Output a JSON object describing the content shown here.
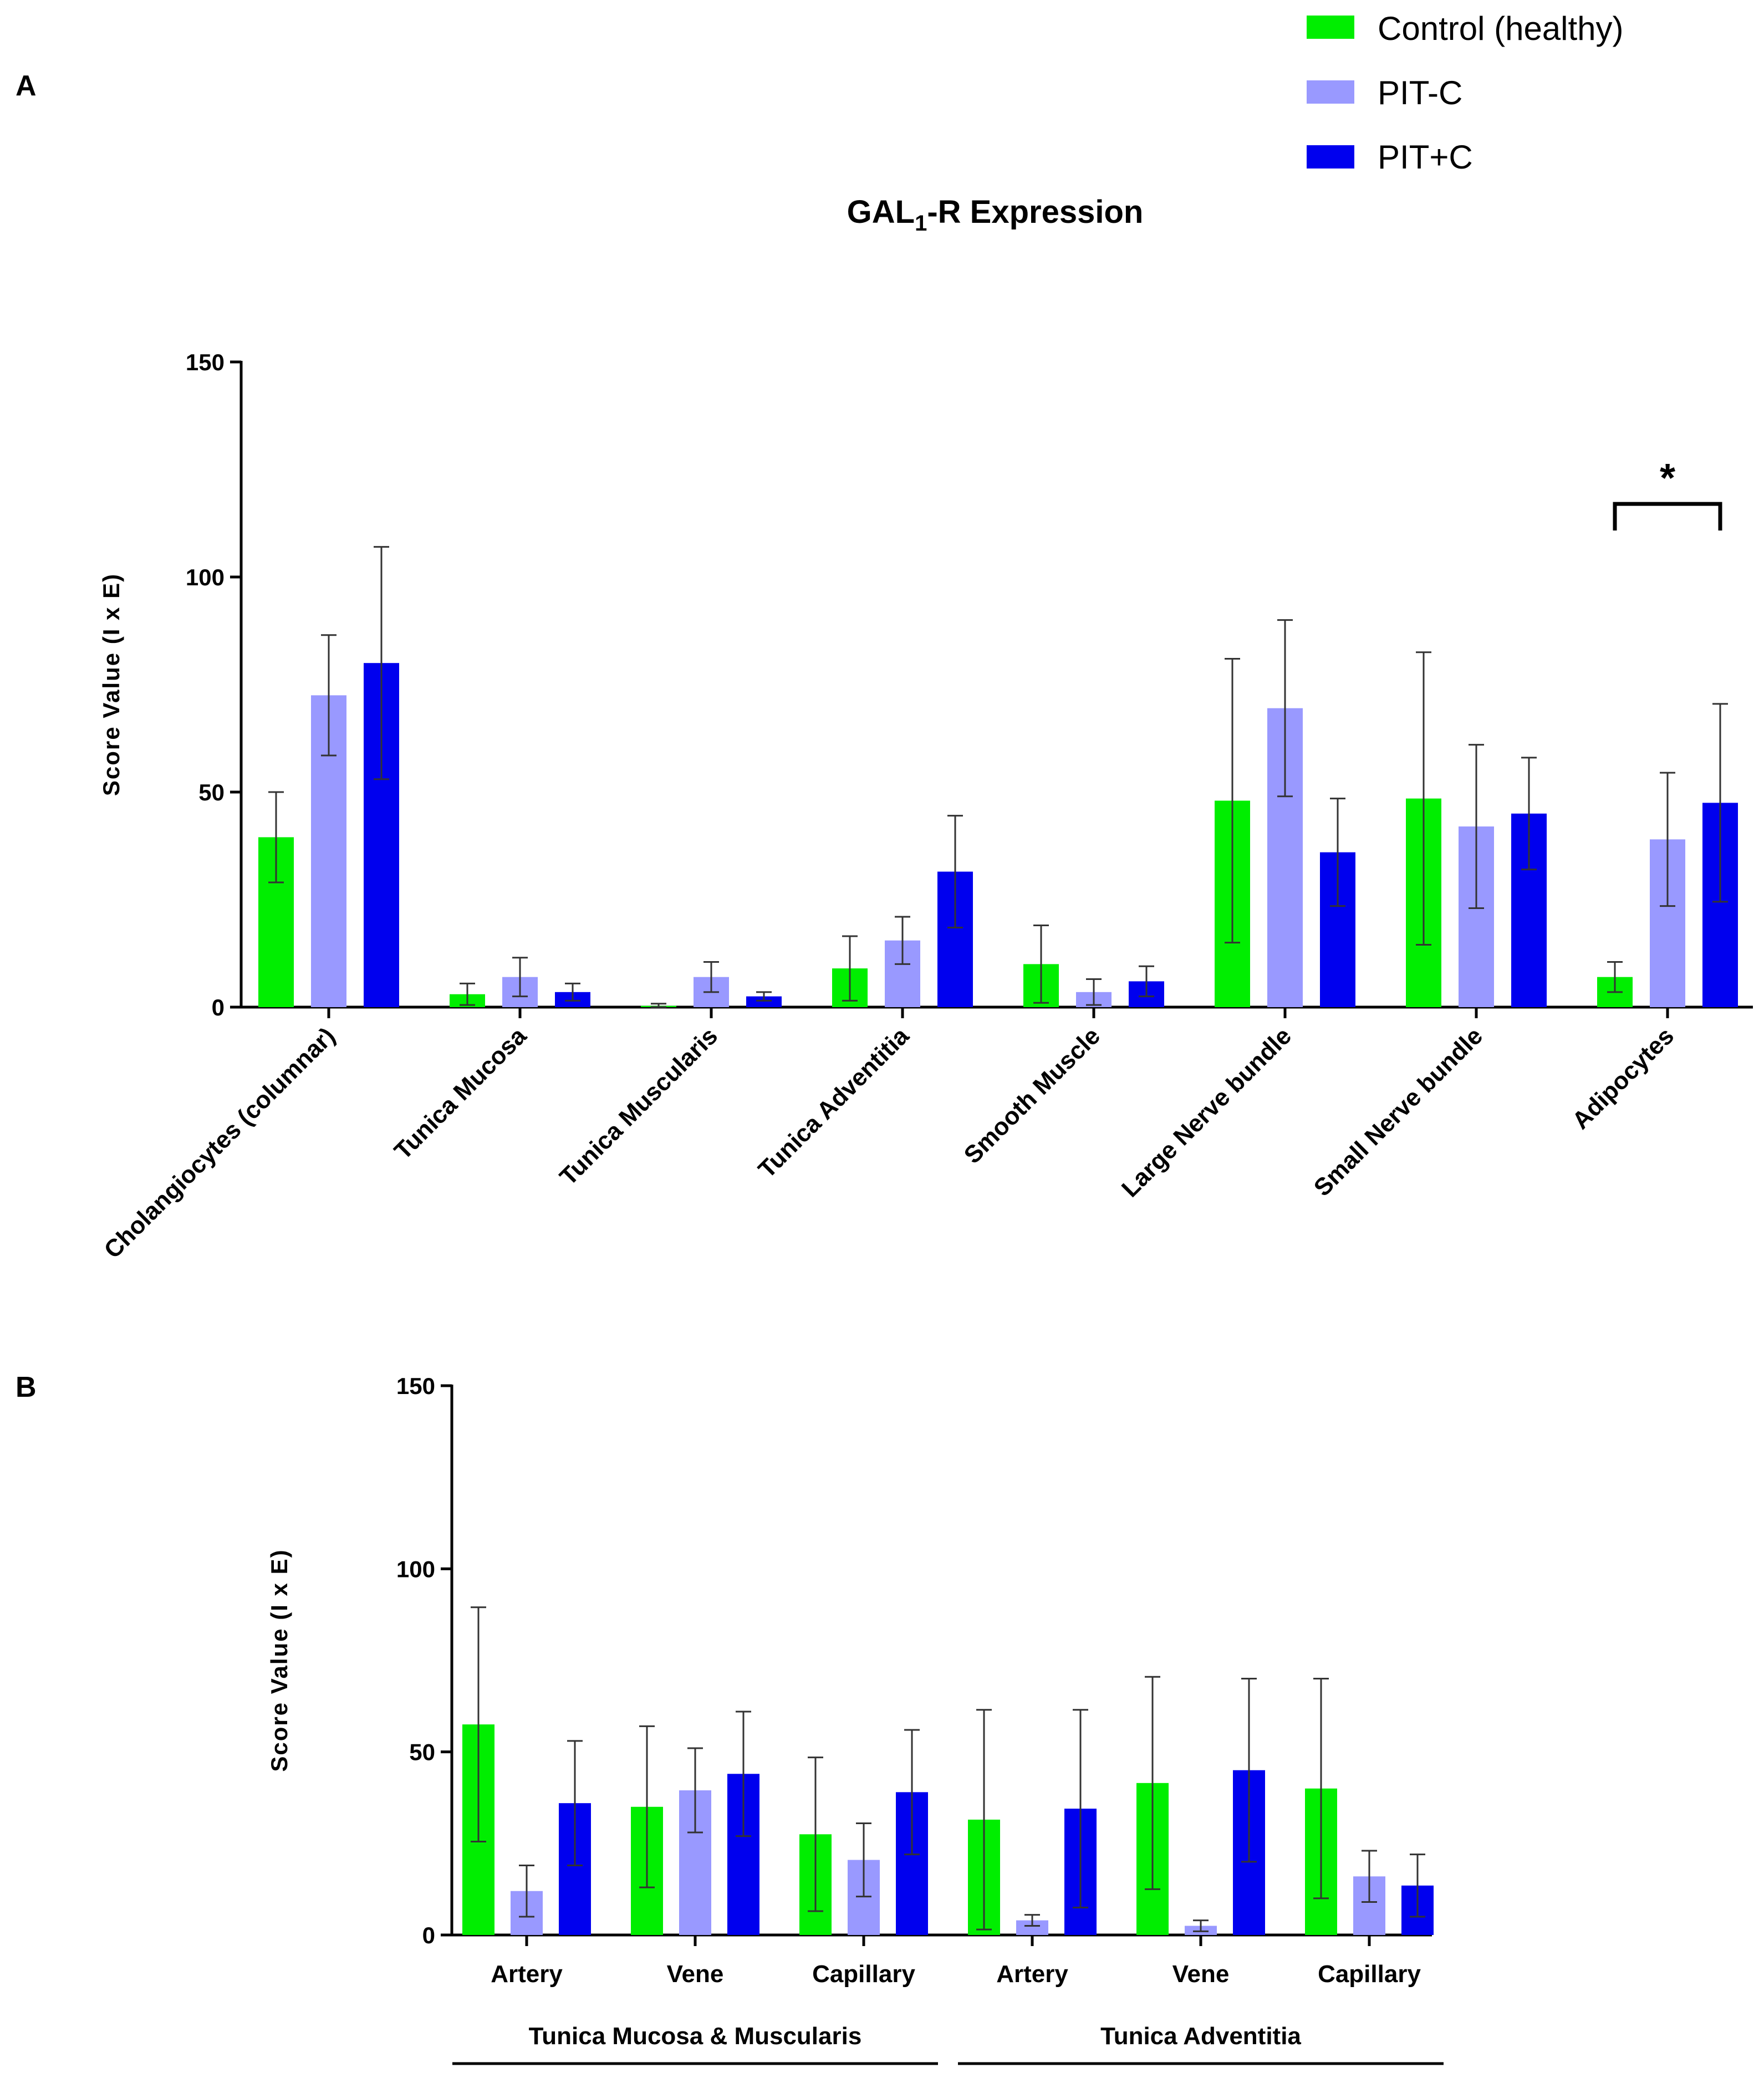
{
  "legend": [
    {
      "name": "Control (healthy)",
      "color": "#00ee00"
    },
    {
      "name": "PIT-C",
      "color": "#9999ff"
    },
    {
      "name": "PIT+C",
      "color": "#0000ee"
    }
  ],
  "chart_data": [
    {
      "panel": "A",
      "type": "bar",
      "title_main": "GAL",
      "title_sub": "1",
      "title_rest": "-R Expression",
      "ylabel": "Score Value (I x E)",
      "ylim": [
        0,
        150
      ],
      "yticks": [
        0,
        50,
        100,
        150
      ],
      "categories": [
        "Cholangiocytes (columnar)",
        "Tunica Mucosa",
        "Tunica Muscularis",
        "Tunica Adventitia",
        "Smooth Muscle",
        "Large Nerve bundle",
        "Small Nerve bundle",
        "Adipocytes"
      ],
      "series": [
        {
          "name": "Control (healthy)",
          "values": [
            39.5,
            3,
            0.3,
            9,
            10,
            48,
            48.5,
            7
          ],
          "errors": [
            10.5,
            2.5,
            0.5,
            7.5,
            9,
            33,
            34,
            3.5
          ]
        },
        {
          "name": "PIT-C",
          "values": [
            72.5,
            7,
            7,
            15.5,
            3.5,
            69.5,
            42,
            39
          ],
          "errors": [
            14,
            4.5,
            3.5,
            5.5,
            3,
            20.5,
            19,
            15.5
          ]
        },
        {
          "name": "PIT+C",
          "values": [
            80,
            3.5,
            2.5,
            31.5,
            6,
            36,
            45,
            47.5
          ],
          "errors": [
            27,
            2,
            1,
            13,
            3.5,
            12.5,
            13,
            23
          ]
        }
      ],
      "annotations": [
        {
          "text": "*",
          "category": "Adipocytes",
          "from_series": 0,
          "to_series": 2,
          "bracket_value": 117
        }
      ]
    },
    {
      "panel": "B",
      "type": "bar",
      "ylabel": "Score Value (I x E)",
      "ylim": [
        0,
        150
      ],
      "yticks": [
        0,
        50,
        100,
        150
      ],
      "categories": [
        "Artery",
        "Vene",
        "Capillary",
        "Artery",
        "Vene",
        "Capillary"
      ],
      "groups": [
        {
          "label": "Tunica Mucosa & Muscularis",
          "start": 0,
          "end": 2
        },
        {
          "label": "Tunica Adventitia",
          "start": 3,
          "end": 5
        }
      ],
      "series": [
        {
          "name": "Control (healthy)",
          "values": [
            57.5,
            35,
            27.5,
            31.5,
            41.5,
            40
          ],
          "errors": [
            32,
            22,
            21,
            30,
            29,
            30
          ]
        },
        {
          "name": "PIT-C",
          "values": [
            12,
            39.5,
            20.5,
            4,
            2.5,
            16
          ],
          "errors": [
            7,
            11.5,
            10,
            1.5,
            1.5,
            7
          ]
        },
        {
          "name": "PIT+C",
          "values": [
            36,
            44,
            39,
            34.5,
            45,
            13.5
          ],
          "errors": [
            17,
            17,
            17,
            27,
            25,
            8.5
          ]
        }
      ]
    }
  ]
}
